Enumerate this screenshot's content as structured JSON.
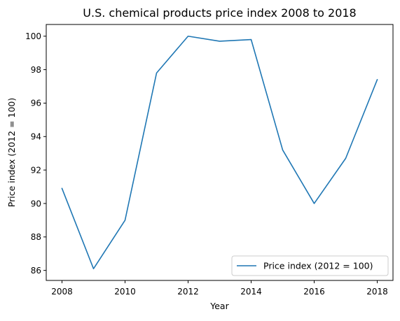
{
  "chart_data": {
    "type": "line",
    "title": "U.S. chemical products price index 2008 to 2018",
    "xlabel": "Year",
    "ylabel": "Price index (2012 = 100)",
    "x": [
      2008,
      2009,
      2010,
      2011,
      2012,
      2013,
      2014,
      2015,
      2016,
      2017,
      2018
    ],
    "series": [
      {
        "name": "Price index (2012 = 100)",
        "color": "#1f77b4",
        "values": [
          90.9,
          86.1,
          89.0,
          97.8,
          100.0,
          99.7,
          99.8,
          93.2,
          90.0,
          92.7,
          97.4
        ]
      }
    ],
    "xlim": [
      2007.5,
      2018.5
    ],
    "ylim": [
      85.4,
      100.7
    ],
    "xticks": [
      2008,
      2010,
      2012,
      2014,
      2016,
      2018
    ],
    "xtick_labels": [
      "2008",
      "2010",
      "2012",
      "2014",
      "2016",
      "2018"
    ],
    "yticks": [
      86,
      88,
      90,
      92,
      94,
      96,
      98,
      100
    ],
    "ytick_labels": [
      "86",
      "88",
      "90",
      "92",
      "94",
      "96",
      "98",
      "100"
    ],
    "grid": false,
    "legend_position": "lower right"
  }
}
